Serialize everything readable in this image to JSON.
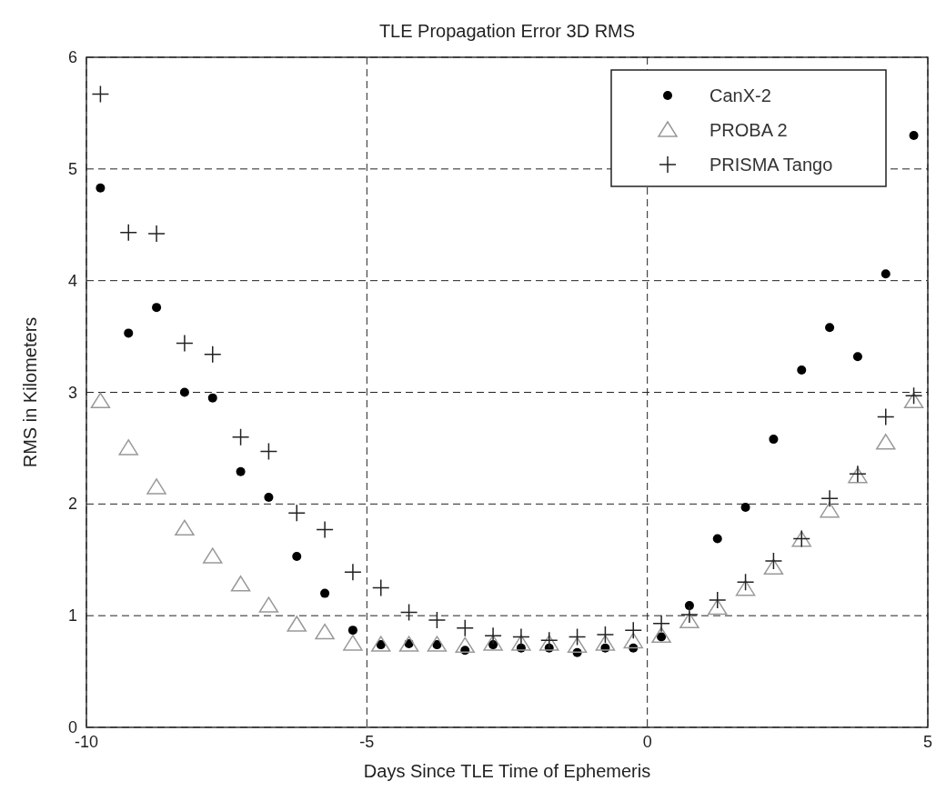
{
  "chart_data": {
    "type": "scatter",
    "title": "TLE Propagation Error 3D RMS",
    "xlabel": "Days Since TLE Time of Ephemeris",
    "ylabel": "RMS in Kilometers",
    "x": [
      -9.75,
      -9.25,
      -8.75,
      -8.25,
      -7.75,
      -7.25,
      -6.75,
      -6.25,
      -5.75,
      -5.25,
      -4.75,
      -4.25,
      -3.75,
      -3.25,
      -2.75,
      -2.25,
      -1.75,
      -1.25,
      -0.75,
      -0.25,
      0.25,
      0.75,
      1.25,
      1.75,
      2.25,
      2.75,
      3.25,
      3.75,
      4.25,
      4.75
    ],
    "series": [
      {
        "name": "CanX-2",
        "color": "#000000",
        "marker": "circle",
        "values": [
          4.83,
          3.53,
          3.76,
          3.0,
          2.95,
          2.29,
          2.06,
          1.53,
          1.2,
          0.87,
          0.74,
          0.75,
          0.74,
          0.69,
          0.74,
          0.71,
          0.71,
          0.67,
          0.71,
          0.71,
          0.81,
          1.09,
          1.69,
          1.97,
          2.58,
          3.2,
          3.58,
          3.32,
          4.06,
          5.3
        ]
      },
      {
        "name": "PROBA 2",
        "color": "#999999",
        "marker": "triangle",
        "values": [
          2.92,
          2.5,
          2.15,
          1.78,
          1.53,
          1.28,
          1.09,
          0.92,
          0.85,
          0.75,
          0.74,
          0.74,
          0.74,
          0.73,
          0.75,
          0.75,
          0.75,
          0.73,
          0.75,
          0.77,
          0.82,
          0.95,
          1.07,
          1.24,
          1.43,
          1.68,
          1.94,
          2.25,
          2.55,
          2.92
        ]
      },
      {
        "name": "PRISMA Tango",
        "color": "#222222",
        "marker": "cross",
        "values": [
          5.67,
          4.43,
          4.42,
          3.44,
          3.34,
          2.6,
          2.47,
          1.92,
          1.77,
          1.39,
          1.25,
          1.03,
          0.96,
          0.89,
          0.82,
          0.81,
          0.78,
          0.81,
          0.83,
          0.87,
          0.93,
          1.01,
          1.14,
          1.3,
          1.49,
          1.69,
          2.05,
          2.27,
          2.78,
          2.97
        ]
      }
    ],
    "xlim": [
      -10,
      5
    ],
    "xticks": [
      -10,
      -5,
      0,
      5
    ],
    "ylim": [
      0,
      6
    ],
    "yticks": [
      0,
      1,
      2,
      3,
      4,
      5,
      6
    ],
    "grid": true,
    "line_style": "dashed",
    "legend": "top right"
  }
}
